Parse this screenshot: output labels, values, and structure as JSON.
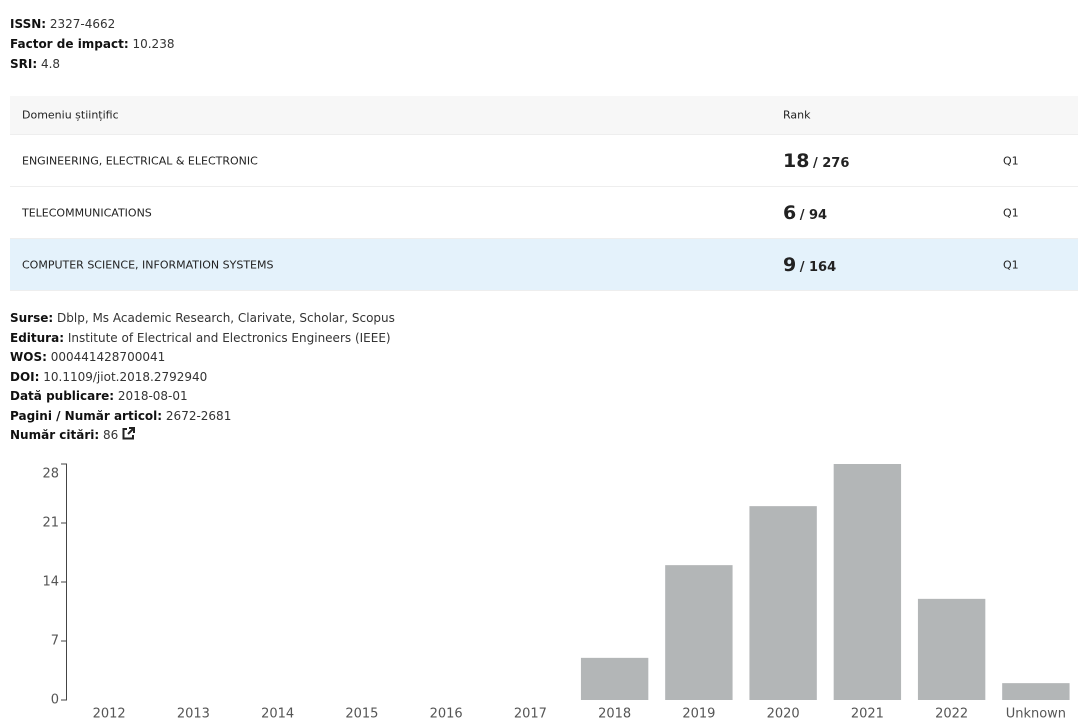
{
  "journal_fields": [
    {
      "label": "ISSN:",
      "value": "2327-4662"
    },
    {
      "label": "Factor de impact:",
      "value": "10.238"
    },
    {
      "label": "SRI:",
      "value": "4.8"
    }
  ],
  "table": {
    "headers": [
      "Domeniu științific",
      "Rank"
    ],
    "rows": [
      {
        "domain": "ENGINEERING, ELECTRICAL & ELECTRONIC",
        "rank": 18,
        "total": "/ 276",
        "quartile": "Q1"
      },
      {
        "domain": "TELECOMMUNICATIONS",
        "rank": 6,
        "total": "/ 94",
        "quartile": "Q1"
      },
      {
        "domain": "COMPUTER SCIENCE, INFORMATION SYSTEMS",
        "rank": 9,
        "total": "/ 164",
        "quartile": "Q1"
      }
    ]
  },
  "article_fields": [
    {
      "label": "Surse:",
      "value": "Dblp, Ms Academic Research, Clarivate, Scholar, Scopus"
    },
    {
      "label": "Editura:",
      "value": "Institute of Electrical and Electronics Engineers (IEEE)"
    },
    {
      "label": "WOS:",
      "value": "000441428700041"
    },
    {
      "label": "DOI:",
      "value": "10.1109/jiot.2018.2792940"
    },
    {
      "label": "Dată publicare:",
      "value": "2018-08-01"
    },
    {
      "label": "Pagini / Număr articol:",
      "value": "2672-2681"
    },
    {
      "label": "Număr citări:",
      "value": "86"
    }
  ],
  "chart_data": {
    "type": "bar",
    "categories": [
      "2012",
      "2013",
      "2014",
      "2015",
      "2016",
      "2017",
      "2018",
      "2019",
      "2020",
      "2021",
      "2022",
      "Unknown"
    ],
    "values": [
      0,
      0,
      0,
      0,
      0,
      0,
      5,
      16,
      23,
      28,
      12,
      2
    ],
    "color": "#b3b6b7",
    "ylim": [
      0,
      28
    ],
    "yticks": [
      0,
      7,
      14,
      21,
      28
    ]
  }
}
